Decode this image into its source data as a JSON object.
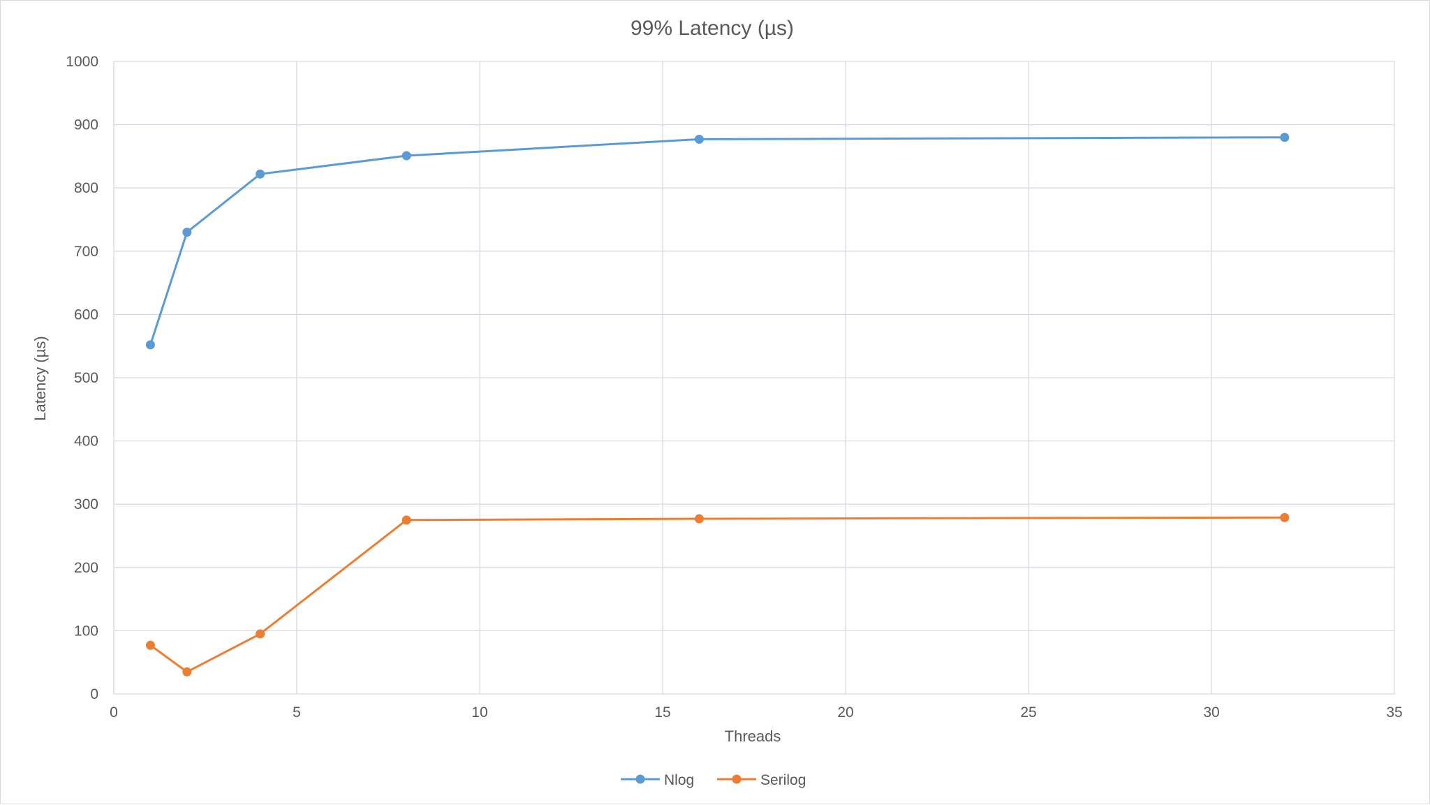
{
  "chart_data": {
    "type": "scatter",
    "title": "99% Latency (µs)",
    "xlabel": "Threads",
    "ylabel": "Latency (µs)",
    "xlim": [
      0,
      35
    ],
    "ylim": [
      0,
      1000
    ],
    "x_ticks": [
      "0",
      "5",
      "10",
      "15",
      "20",
      "25",
      "30",
      "35"
    ],
    "y_ticks": [
      "0",
      "100",
      "200",
      "300",
      "400",
      "500",
      "600",
      "700",
      "800",
      "900",
      "1000"
    ],
    "grid": true,
    "legend_position": "bottom",
    "lines_with_markers": true,
    "series": [
      {
        "name": "Nlog",
        "color": "#5b9bd5",
        "x": [
          1,
          2,
          4,
          8,
          16,
          32
        ],
        "y": [
          552,
          730,
          822,
          851,
          877,
          880
        ]
      },
      {
        "name": "Serilog",
        "color": "#ed7d31",
        "x": [
          1,
          2,
          4,
          8,
          16,
          32
        ],
        "y": [
          77,
          35,
          95,
          275,
          277,
          279
        ]
      }
    ]
  }
}
